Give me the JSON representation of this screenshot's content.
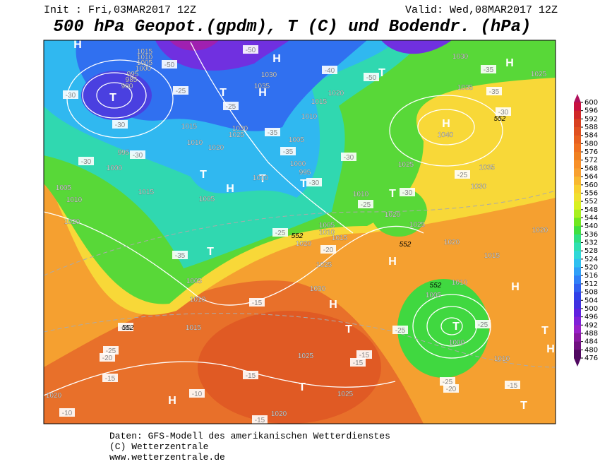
{
  "header": {
    "init": "Init : Fri,03MAR2017 12Z",
    "valid": "Valid: Wed,08MAR2017 12Z",
    "title": "500 hPa Geopot.(gpdm), T (C) und Bodendr. (hPa)"
  },
  "map": {
    "centers": [
      "H",
      "T",
      "H",
      "T",
      "H",
      "T",
      "H",
      "T",
      "T",
      "T",
      "T",
      "H",
      "H",
      "T",
      "H",
      "H",
      "T",
      "H",
      "T",
      "T",
      "H",
      "T",
      "H",
      "T"
    ],
    "isobars": [
      1015,
      1010,
      1005,
      1000,
      995,
      985,
      980,
      1030,
      1035,
      1020,
      1015,
      1010,
      1015,
      1010,
      1030,
      1025,
      1020,
      1005,
      1000,
      995,
      1010,
      995,
      1000,
      1005,
      1010,
      1015,
      1020,
      1005,
      1005,
      1010,
      1015,
      1030,
      1035,
      1040,
      1035,
      1030,
      1025,
      1010,
      1020,
      1025,
      1020,
      1015,
      1020,
      1010,
      1005,
      1000,
      1010,
      1025,
      1030,
      1025,
      1025,
      1020,
      1020,
      1005,
      1010,
      1015,
      1020,
      1025
    ],
    "temperatures": [
      -30,
      -30,
      -25,
      -25,
      -35,
      -35,
      -30,
      -30,
      -30,
      -25,
      -25,
      -35,
      -30,
      -30,
      -20,
      -15,
      -20,
      -25,
      -20,
      -15,
      -15,
      -10,
      -10,
      -15,
      -15,
      -15,
      -25,
      -25,
      -25,
      -20,
      -15,
      -25,
      -30,
      -35,
      -35,
      -40,
      -50,
      -50,
      -50
    ],
    "geopotential": [
      552,
      552,
      552,
      552,
      552
    ]
  },
  "colorbar": {
    "values": [
      600,
      596,
      592,
      588,
      584,
      580,
      576,
      572,
      568,
      564,
      560,
      556,
      552,
      548,
      544,
      540,
      536,
      532,
      528,
      524,
      520,
      516,
      512,
      508,
      504,
      500,
      496,
      492,
      488,
      484,
      480,
      476
    ],
    "colors": [
      "#b0105c",
      "#c81040",
      "#d02828",
      "#d84020",
      "#e05020",
      "#e86020",
      "#f07020",
      "#f08020",
      "#f89028",
      "#f8a030",
      "#f8b830",
      "#f8d030",
      "#f0e030",
      "#d8f020",
      "#a8f020",
      "#70e820",
      "#40e040",
      "#30e080",
      "#30e0b0",
      "#30d8d8",
      "#30c0f0",
      "#30a0f8",
      "#3080f8",
      "#3060f0",
      "#3040e8",
      "#4030e0",
      "#6020e0",
      "#8020d8",
      "#9820c8",
      "#8818a0",
      "#701080",
      "#500860"
    ]
  },
  "footer": [
    "Daten: GFS-Modell des amerikanischen Wetterdienstes",
    "(C) Wetterzentrale",
    "www.wetterzentrale.de"
  ]
}
